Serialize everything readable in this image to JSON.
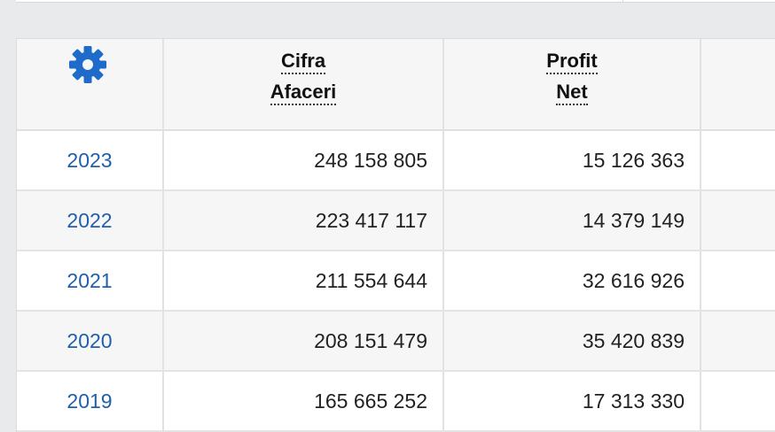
{
  "icons": {
    "settings": "gear-icon"
  },
  "colors": {
    "accent": "#1f6bc9",
    "link": "#1f5fad"
  },
  "table": {
    "headers": {
      "cifra_afaceri": [
        "Cifra",
        "Afaceri"
      ],
      "profit_net": [
        "Profit",
        "Net"
      ]
    },
    "rows": [
      {
        "year": "2023",
        "cifra_afaceri": "248 158 805",
        "profit_net": "15 126 363"
      },
      {
        "year": "2022",
        "cifra_afaceri": "223 417 117",
        "profit_net": "14 379 149"
      },
      {
        "year": "2021",
        "cifra_afaceri": "211 554 644",
        "profit_net": "32 616 926"
      },
      {
        "year": "2020",
        "cifra_afaceri": "208 151 479",
        "profit_net": "35 420 839"
      },
      {
        "year": "2019",
        "cifra_afaceri": "165 665 252",
        "profit_net": "17 313 330"
      }
    ]
  }
}
